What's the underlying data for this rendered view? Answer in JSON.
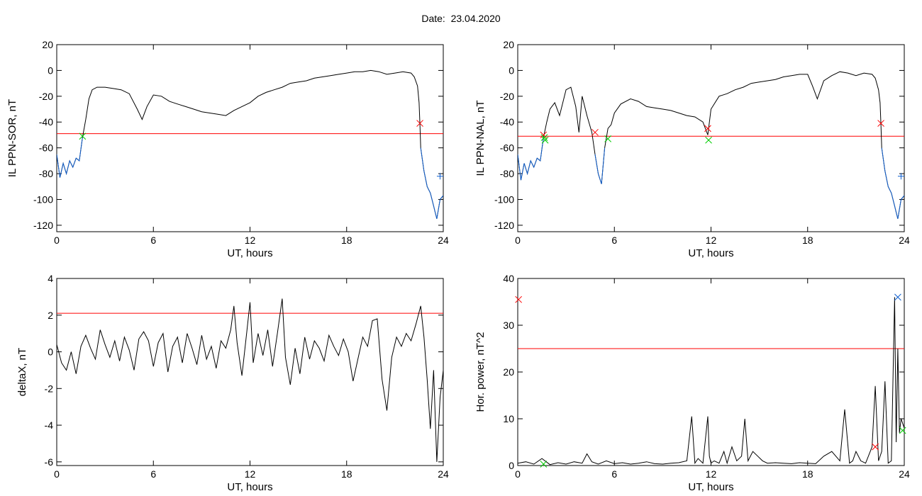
{
  "title": "Date:  23.04.2020",
  "colors": {
    "data": "#000000",
    "threshold": "#ff0000",
    "below": "#1060d0",
    "red_mark": "#ff0000",
    "green_mark": "#00cc00",
    "blue_mark": "#1060d0"
  },
  "chart_data": [
    {
      "id": "ppn-sor",
      "type": "line",
      "xlabel": "UT, hours",
      "ylabel": "IL PPN-SOR, nT",
      "xlim": [
        0,
        24
      ],
      "ylim": [
        -125,
        20
      ],
      "xticks": [
        0,
        6,
        12,
        18,
        24
      ],
      "yticks": [
        20,
        0,
        -20,
        -40,
        -60,
        -80,
        -100,
        -120
      ],
      "threshold": -49,
      "series": [
        {
          "x": [
            0,
            0.2,
            0.4,
            0.6,
            0.8,
            1.0,
            1.2,
            1.4,
            1.6,
            1.8,
            2.0,
            2.2,
            2.5,
            3.0,
            3.5,
            4.0,
            4.5,
            5.0,
            5.3,
            5.6,
            6.0,
            6.5,
            7.0,
            7.5,
            8.0,
            8.5,
            9.0,
            9.5,
            10.0,
            10.5,
            11.0,
            11.5,
            12.0,
            12.5,
            13.0,
            13.5,
            14.0,
            14.5,
            15.0,
            15.5,
            16.0,
            16.5,
            17.0,
            17.5,
            18.0,
            18.5,
            19.0,
            19.5,
            20.0,
            20.5,
            21.0,
            21.5,
            22.0,
            22.2,
            22.4,
            22.5,
            22.55,
            22.6,
            22.8,
            23.0,
            23.2,
            23.4,
            23.5,
            23.6,
            23.8,
            24.0
          ],
          "y": [
            -65,
            -83,
            -72,
            -80,
            -70,
            -75,
            -68,
            -70,
            -52,
            -38,
            -22,
            -15,
            -13,
            -13,
            -14,
            -15,
            -18,
            -30,
            -38,
            -28,
            -19,
            -20,
            -24,
            -26,
            -28,
            -30,
            -32,
            -33,
            -34,
            -35,
            -31,
            -28,
            -25,
            -20,
            -17,
            -15,
            -13,
            -10,
            -9,
            -8,
            -6,
            -5,
            -4,
            -3,
            -2,
            -1,
            -1,
            0,
            -1,
            -3,
            -2,
            -1,
            -2,
            -5,
            -12,
            -25,
            -42,
            -60,
            -78,
            -90,
            -95,
            -105,
            -110,
            -115,
            -100,
            -97
          ]
        }
      ],
      "markers": [
        {
          "x": 1.6,
          "y": -51,
          "symbol": "x",
          "color": "green"
        },
        {
          "x": 22.55,
          "y": -41,
          "symbol": "x",
          "color": "red"
        },
        {
          "x": 23.8,
          "y": -82,
          "symbol": "+",
          "color": "blue"
        }
      ]
    },
    {
      "id": "ppn-nal",
      "type": "line",
      "xlabel": "UT, hours",
      "ylabel": "IL PPN-NAL, nT",
      "xlim": [
        0,
        24
      ],
      "ylim": [
        -125,
        20
      ],
      "xticks": [
        0,
        6,
        12,
        18,
        24
      ],
      "yticks": [
        20,
        0,
        -20,
        -40,
        -60,
        -80,
        -100,
        -120
      ],
      "threshold": -51,
      "series": [
        {
          "x": [
            0,
            0.2,
            0.4,
            0.6,
            0.8,
            1.0,
            1.2,
            1.4,
            1.6,
            1.8,
            2.0,
            2.3,
            2.6,
            3.0,
            3.3,
            3.6,
            3.8,
            4.0,
            4.3,
            4.6,
            4.8,
            5.0,
            5.2,
            5.4,
            5.6,
            5.8,
            6.0,
            6.4,
            7.0,
            7.5,
            8.0,
            8.5,
            9.0,
            9.5,
            10.0,
            10.5,
            11.0,
            11.5,
            11.8,
            12.0,
            12.5,
            13.0,
            13.5,
            14.0,
            14.5,
            15.0,
            15.5,
            16.0,
            16.5,
            17.0,
            17.5,
            18.0,
            18.3,
            18.6,
            19.0,
            19.5,
            20.0,
            20.5,
            21.0,
            21.5,
            22.0,
            22.2,
            22.4,
            22.5,
            22.55,
            22.6,
            22.8,
            23.0,
            23.2,
            23.4,
            23.5,
            23.6,
            23.8,
            24.0
          ],
          "y": [
            -65,
            -85,
            -72,
            -80,
            -70,
            -75,
            -68,
            -70,
            -52,
            -40,
            -30,
            -25,
            -35,
            -15,
            -13,
            -28,
            -48,
            -20,
            -35,
            -48,
            -65,
            -80,
            -88,
            -60,
            -45,
            -42,
            -33,
            -26,
            -22,
            -24,
            -28,
            -29,
            -30,
            -31,
            -33,
            -35,
            -36,
            -40,
            -50,
            -30,
            -20,
            -18,
            -15,
            -13,
            -10,
            -9,
            -8,
            -7,
            -5,
            -4,
            -3,
            -3,
            -12,
            -22,
            -8,
            -4,
            -1,
            -2,
            -4,
            -2,
            -3,
            -6,
            -15,
            -25,
            -42,
            -60,
            -78,
            -90,
            -95,
            -105,
            -110,
            -115,
            -100,
            -97
          ]
        }
      ],
      "markers": [
        {
          "x": 1.6,
          "y": -50,
          "symbol": "x",
          "color": "red"
        },
        {
          "x": 1.65,
          "y": -52,
          "symbol": "x",
          "color": "green"
        },
        {
          "x": 1.7,
          "y": -54,
          "symbol": "x",
          "color": "green"
        },
        {
          "x": 4.8,
          "y": -48,
          "symbol": "x",
          "color": "red"
        },
        {
          "x": 5.6,
          "y": -53,
          "symbol": "x",
          "color": "green"
        },
        {
          "x": 11.8,
          "y": -45,
          "symbol": "x",
          "color": "red"
        },
        {
          "x": 11.85,
          "y": -54,
          "symbol": "x",
          "color": "green"
        },
        {
          "x": 22.55,
          "y": -41,
          "symbol": "x",
          "color": "red"
        },
        {
          "x": 23.8,
          "y": -82,
          "symbol": "+",
          "color": "blue"
        }
      ]
    },
    {
      "id": "deltax",
      "type": "line",
      "xlabel": "UT, hours",
      "ylabel": "deltaX, nT",
      "xlim": [
        0,
        24
      ],
      "ylim": [
        -6.2,
        4
      ],
      "xticks": [
        0,
        6,
        12,
        18,
        24
      ],
      "yticks": [
        4,
        2,
        0,
        -2,
        -4,
        -6
      ],
      "threshold": 2.1,
      "series": [
        {
          "x": [
            0,
            0.3,
            0.6,
            0.9,
            1.2,
            1.5,
            1.8,
            2.1,
            2.4,
            2.7,
            3.0,
            3.3,
            3.6,
            3.9,
            4.2,
            4.5,
            4.8,
            5.1,
            5.4,
            5.7,
            6.0,
            6.3,
            6.6,
            6.9,
            7.2,
            7.5,
            7.8,
            8.1,
            8.4,
            8.7,
            9.0,
            9.3,
            9.6,
            9.9,
            10.2,
            10.5,
            10.8,
            11.0,
            11.2,
            11.5,
            11.8,
            12.0,
            12.2,
            12.5,
            12.8,
            13.1,
            13.4,
            13.7,
            14.0,
            14.2,
            14.5,
            14.8,
            15.1,
            15.4,
            15.7,
            16.0,
            16.3,
            16.6,
            16.9,
            17.2,
            17.5,
            17.8,
            18.1,
            18.4,
            18.7,
            19.0,
            19.3,
            19.6,
            19.9,
            20.2,
            20.5,
            20.8,
            21.1,
            21.4,
            21.7,
            22.0,
            22.3,
            22.6,
            22.8,
            23.0,
            23.2,
            23.4,
            23.6,
            23.8,
            24.0
          ],
          "y": [
            0.4,
            -0.6,
            -1.0,
            0.0,
            -1.2,
            0.3,
            0.9,
            0.2,
            -0.4,
            1.2,
            0.4,
            -0.3,
            0.6,
            -0.5,
            0.8,
            0.1,
            -1.0,
            0.7,
            1.1,
            0.6,
            -0.8,
            0.5,
            1.0,
            -1.1,
            0.3,
            0.8,
            -0.6,
            1.0,
            0.2,
            -0.7,
            0.9,
            -0.4,
            0.3,
            -0.9,
            0.6,
            0.2,
            1.2,
            2.5,
            0.5,
            -1.3,
            1.1,
            2.7,
            -0.6,
            1.0,
            -0.2,
            1.2,
            -0.8,
            1.0,
            2.9,
            -0.3,
            -1.8,
            0.2,
            -1.2,
            0.8,
            -0.4,
            0.6,
            0.2,
            -0.5,
            0.9,
            0.3,
            -0.2,
            0.7,
            0.0,
            -1.6,
            -0.4,
            0.8,
            0.3,
            1.7,
            1.8,
            -1.5,
            -3.2,
            -0.3,
            0.8,
            0.3,
            1.0,
            0.6,
            1.5,
            2.5,
            0.8,
            -1.5,
            -4.2,
            -1.0,
            -6.0,
            -2.5,
            -1.0
          ]
        }
      ],
      "markers": []
    },
    {
      "id": "hor-power",
      "type": "line",
      "xlabel": "UT, hours",
      "ylabel": "Hor. power, nT^2",
      "xlim": [
        0,
        24
      ],
      "ylim": [
        0,
        40
      ],
      "xticks": [
        0,
        6,
        12,
        18,
        24
      ],
      "yticks": [
        40,
        30,
        20,
        10,
        0
      ],
      "threshold": 25,
      "series": [
        {
          "x": [
            0,
            0.5,
            1.0,
            1.5,
            2.0,
            2.5,
            3.0,
            3.5,
            4.0,
            4.3,
            4.6,
            5.0,
            5.5,
            6.0,
            6.5,
            7.0,
            7.5,
            8.0,
            8.5,
            9.0,
            9.5,
            10.0,
            10.5,
            10.8,
            11.0,
            11.2,
            11.5,
            11.8,
            11.9,
            12.0,
            12.2,
            12.5,
            12.8,
            13.0,
            13.3,
            13.6,
            13.9,
            14.1,
            14.3,
            14.6,
            14.9,
            15.2,
            15.5,
            16.0,
            16.5,
            17.0,
            17.5,
            18.0,
            18.5,
            19.0,
            19.5,
            20.0,
            20.3,
            20.6,
            20.8,
            21.0,
            21.3,
            21.6,
            22.0,
            22.2,
            22.4,
            22.6,
            22.8,
            23.0,
            23.2,
            23.4,
            23.5,
            23.6,
            23.7,
            23.8,
            24.0
          ],
          "y": [
            0.5,
            0.8,
            0.3,
            1.5,
            0.2,
            0.6,
            0.3,
            0.8,
            0.5,
            2.5,
            0.8,
            0.3,
            1.0,
            0.4,
            0.6,
            0.3,
            0.5,
            0.8,
            0.4,
            0.3,
            0.5,
            0.6,
            1.0,
            10.5,
            0.5,
            1.5,
            0.5,
            10.5,
            2.0,
            0.5,
            1.0,
            0.5,
            3.0,
            0.5,
            4.0,
            1.0,
            2.0,
            10.0,
            1.0,
            3.0,
            2.0,
            1.0,
            0.5,
            0.6,
            0.5,
            0.4,
            0.6,
            0.5,
            0.4,
            2.0,
            3.0,
            1.0,
            12.0,
            0.5,
            1.0,
            3.0,
            1.0,
            0.5,
            4.0,
            17.0,
            1.0,
            3.0,
            18.0,
            0.5,
            1.0,
            36.0,
            5.0,
            25.0,
            7.0,
            10.0,
            8.0
          ]
        }
      ],
      "markers": [
        {
          "x": 0.05,
          "y": 35.5,
          "symbol": "x",
          "color": "red"
        },
        {
          "x": 1.6,
          "y": 0.3,
          "symbol": "x",
          "color": "green"
        },
        {
          "x": 22.2,
          "y": 4.0,
          "symbol": "x",
          "color": "red"
        },
        {
          "x": 23.6,
          "y": 36.0,
          "symbol": "x",
          "color": "blue"
        },
        {
          "x": 23.9,
          "y": 7.5,
          "symbol": "x",
          "color": "green"
        }
      ]
    }
  ]
}
